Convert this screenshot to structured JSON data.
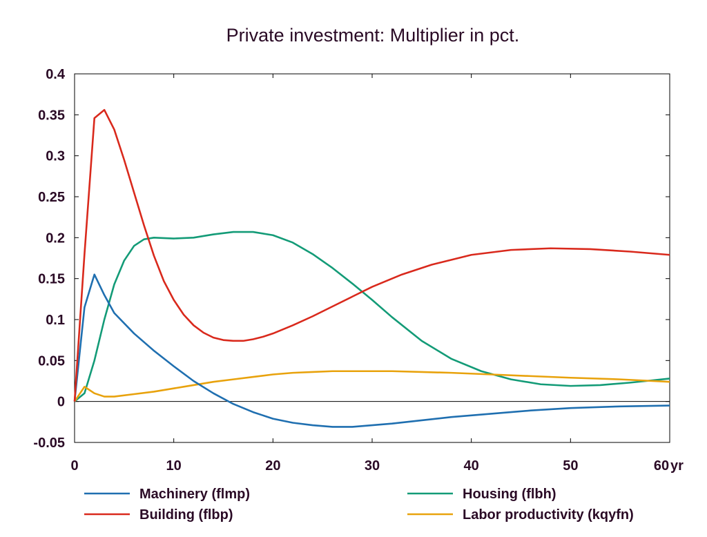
{
  "chart_data": {
    "type": "line",
    "title": "Private investment: Multiplier in pct.",
    "xlabel": "",
    "ylabel": "",
    "x_unit_label": "yr",
    "xlim": [
      0,
      60
    ],
    "ylim": [
      -0.05,
      0.4
    ],
    "xticks": [
      0,
      10,
      20,
      30,
      40,
      50,
      60
    ],
    "yticks": [
      -0.05,
      0,
      0.05,
      0.1,
      0.15,
      0.2,
      0.25,
      0.3,
      0.35,
      0.4
    ],
    "ytick_labels": [
      "-0.05",
      "0",
      "0.05",
      "0.1",
      "0.15",
      "0.2",
      "0.25",
      "0.3",
      "0.35",
      "0.4"
    ],
    "xtick_labels": [
      "0",
      "10",
      "20",
      "30",
      "40",
      "50",
      "60"
    ],
    "grid": false,
    "zero_line": true,
    "legend_position": "bottom",
    "series": [
      {
        "name": "Machinery (flmp)",
        "color": "#1f6fb0",
        "x": [
          0,
          1,
          2,
          3,
          4,
          6,
          8,
          10,
          12,
          14,
          16,
          18,
          20,
          22,
          24,
          26,
          28,
          30,
          32,
          35,
          38,
          42,
          46,
          50,
          55,
          60
        ],
        "y": [
          0,
          0.115,
          0.155,
          0.13,
          0.108,
          0.083,
          0.062,
          0.043,
          0.025,
          0.01,
          -0.003,
          -0.013,
          -0.021,
          -0.026,
          -0.029,
          -0.031,
          -0.031,
          -0.029,
          -0.027,
          -0.023,
          -0.019,
          -0.015,
          -0.011,
          -0.008,
          -0.006,
          -0.005
        ]
      },
      {
        "name": "Housing (flbh)",
        "color": "#139b77",
        "x": [
          0,
          1,
          2,
          3,
          4,
          5,
          6,
          7,
          8,
          10,
          12,
          14,
          16,
          18,
          20,
          22,
          24,
          26,
          28,
          30,
          32,
          35,
          38,
          41,
          44,
          47,
          50,
          53,
          56,
          60
        ],
        "y": [
          0,
          0.01,
          0.05,
          0.1,
          0.143,
          0.172,
          0.19,
          0.198,
          0.2,
          0.199,
          0.2,
          0.204,
          0.207,
          0.207,
          0.203,
          0.194,
          0.18,
          0.163,
          0.144,
          0.124,
          0.103,
          0.074,
          0.052,
          0.037,
          0.027,
          0.021,
          0.019,
          0.02,
          0.023,
          0.028
        ]
      },
      {
        "name": "Building (flbp)",
        "color": "#d9291c",
        "x": [
          0,
          1,
          2,
          3,
          4,
          5,
          6,
          7,
          8,
          9,
          10,
          11,
          12,
          13,
          14,
          15,
          16,
          17,
          18,
          19,
          20,
          22,
          24,
          26,
          28,
          30,
          33,
          36,
          40,
          44,
          48,
          52,
          56,
          60
        ],
        "y": [
          0,
          0.18,
          0.346,
          0.356,
          0.332,
          0.295,
          0.255,
          0.215,
          0.178,
          0.147,
          0.124,
          0.106,
          0.093,
          0.084,
          0.078,
          0.075,
          0.074,
          0.074,
          0.076,
          0.079,
          0.083,
          0.093,
          0.104,
          0.116,
          0.128,
          0.14,
          0.155,
          0.167,
          0.179,
          0.185,
          0.187,
          0.186,
          0.183,
          0.179
        ]
      },
      {
        "name": "Labor productivity (kqyfn)",
        "color": "#e8a20c",
        "x": [
          0,
          1,
          2,
          3,
          4,
          6,
          8,
          10,
          12,
          14,
          16,
          18,
          20,
          22,
          24,
          26,
          28,
          30,
          32,
          35,
          38,
          42,
          46,
          50,
          55,
          60
        ],
        "y": [
          0,
          0.018,
          0.01,
          0.006,
          0.006,
          0.009,
          0.012,
          0.016,
          0.02,
          0.024,
          0.027,
          0.03,
          0.033,
          0.035,
          0.036,
          0.037,
          0.037,
          0.037,
          0.037,
          0.036,
          0.035,
          0.033,
          0.031,
          0.029,
          0.027,
          0.024
        ]
      }
    ]
  }
}
